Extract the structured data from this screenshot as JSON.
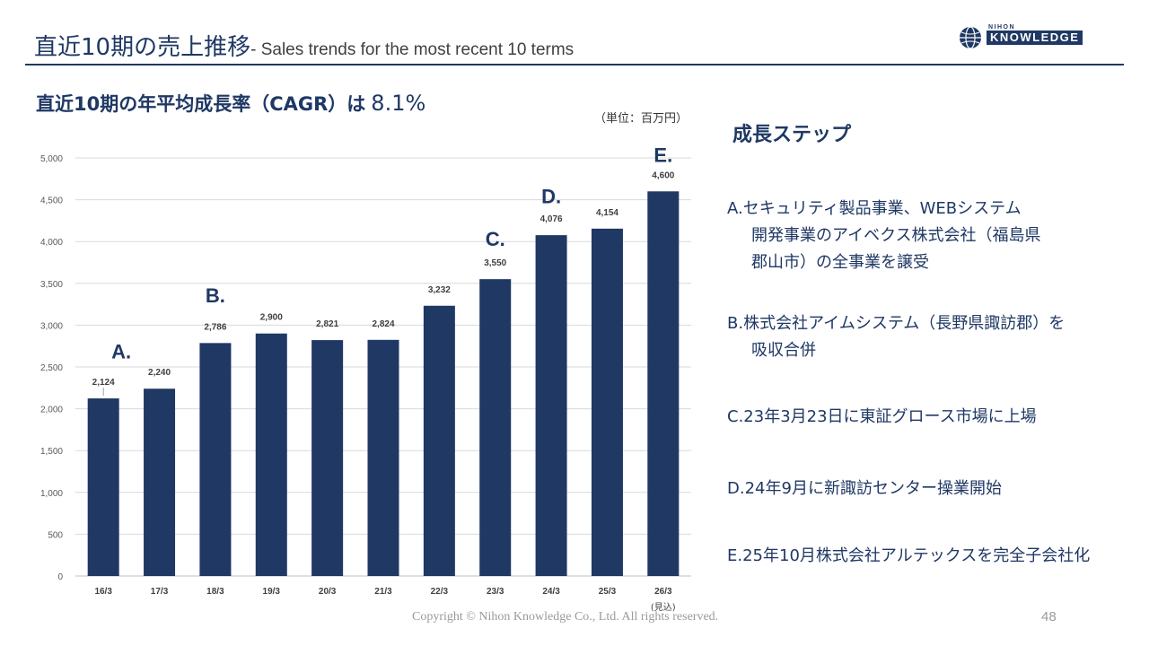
{
  "header": {
    "title_jp": "直近10期の売上推移",
    "title_en": "- Sales trends for the most recent 10 terms"
  },
  "logo": {
    "top_text": "NIHON",
    "main_text": "KNOWLEDGE"
  },
  "cagr": {
    "label": "直近10期の年平均成長率（CAGR）は",
    "value": "8.1%"
  },
  "unit": "（単位：百万円）",
  "chart_data": {
    "type": "bar",
    "categories": [
      "16/3",
      "17/3",
      "18/3",
      "19/3",
      "20/3",
      "21/3",
      "22/3",
      "23/3",
      "24/3",
      "25/3",
      "26/3"
    ],
    "category_sublabels": [
      "",
      "",
      "",
      "",
      "",
      "",
      "",
      "",
      "",
      "",
      "(見込)"
    ],
    "values": [
      2124,
      2240,
      2786,
      2900,
      2821,
      2824,
      3232,
      3550,
      4076,
      4154,
      4600
    ],
    "value_labels": [
      "2,124",
      "2,240",
      "2,786",
      "2,900",
      "2,821",
      "2,824",
      "3,232",
      "3,550",
      "4,076",
      "4,154",
      "4,600"
    ],
    "ylim": [
      0,
      5000
    ],
    "yticks": [
      0,
      500,
      1000,
      1500,
      2000,
      2500,
      3000,
      3500,
      4000,
      4500,
      5000
    ],
    "ytick_labels": [
      "0",
      "500",
      "1,000",
      "1,500",
      "2,000",
      "2,500",
      "3,000",
      "3,500",
      "4,000",
      "4,500",
      "5,000"
    ],
    "grid": true,
    "bar_color": "#1f3864",
    "annotations": [
      {
        "label": "A.",
        "category_index": 0,
        "value": 2600
      },
      {
        "label": "B.",
        "category_index": 2,
        "value": 3270
      },
      {
        "label": "C.",
        "category_index": 7,
        "value": 3950
      },
      {
        "label": "D.",
        "category_index": 8,
        "value": 4460
      },
      {
        "label": "E.",
        "category_index": 10,
        "value": 4950
      }
    ]
  },
  "steps": {
    "title": "成長ステップ",
    "items": [
      {
        "head": "A.",
        "lines": [
          "セキュリティ製品事業、WEBシステム",
          "開発事業のアイベクス株式会社（福島県",
          "郡山市）の全事業を譲受"
        ]
      },
      {
        "head": "B.",
        "lines": [
          "株式会社アイムシステム（長野県諏訪郡）を",
          "吸収合併"
        ]
      },
      {
        "head": "C.",
        "lines": [
          "23年3月23日に東証グロース市場に上場"
        ]
      },
      {
        "head": "D.",
        "lines": [
          "24年9月に新諏訪センター操業開始"
        ]
      },
      {
        "head": "E.",
        "lines": [
          "25年10月株式会社アルテックスを完全子会社化"
        ]
      }
    ]
  },
  "footer": {
    "copyright": "Copyright © Nihon Knowledge Co., Ltd. All rights reserved.",
    "page": "48"
  },
  "colors": {
    "primary": "#1f3864",
    "grid": "#d9d9d9",
    "text_gray": "#9a9a9a"
  }
}
